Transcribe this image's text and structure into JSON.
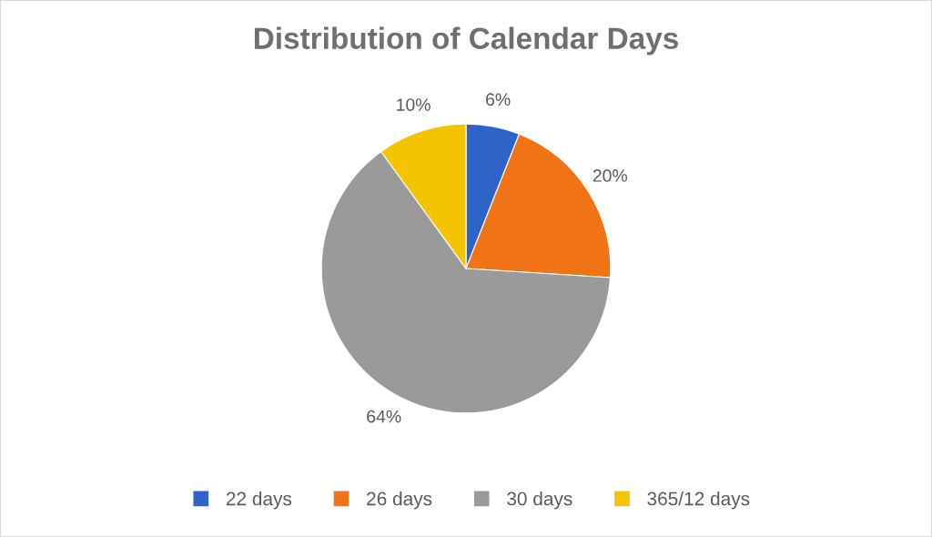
{
  "chart_data": {
    "type": "pie",
    "title": "Distribution of Calendar Days",
    "categories": [
      "22 days",
      "26 days",
      "30 days",
      "365/12 days"
    ],
    "values": [
      6,
      20,
      64,
      10
    ],
    "colors": [
      "#2e64c8",
      "#f07416",
      "#9a9a9a",
      "#f5c400"
    ],
    "value_labels": [
      "6%",
      "20%",
      "64%",
      "10%"
    ],
    "legend": "bottom"
  }
}
